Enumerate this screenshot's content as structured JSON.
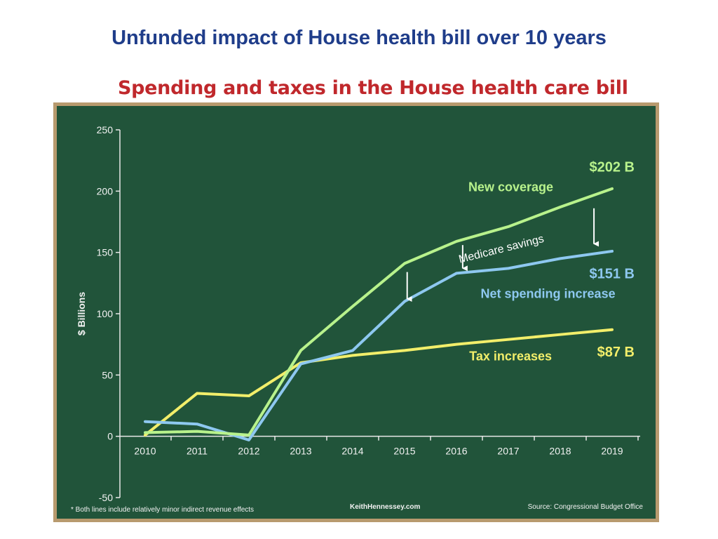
{
  "slide": {
    "title": "Unfunded impact of House health bill over 10 years"
  },
  "chart_data": {
    "type": "line",
    "title": "Spending and taxes in the House health care bill",
    "xlabel": "",
    "ylabel": "$ Billions",
    "ylim": [
      -50,
      250
    ],
    "yticks": [
      -50,
      0,
      50,
      100,
      150,
      200,
      250
    ],
    "x": [
      "2010",
      "2011",
      "2012",
      "2013",
      "2014",
      "2015",
      "2016",
      "2017",
      "2018",
      "2019"
    ],
    "grid": false,
    "series": [
      {
        "name": "New coverage",
        "color": "#b8f28c",
        "values": [
          3,
          4,
          1,
          70,
          106,
          141,
          159,
          171,
          187,
          202
        ],
        "end_label": "$202 B"
      },
      {
        "name": "Net spending increase",
        "color": "#8ec8f0",
        "values": [
          12,
          10,
          -3,
          59,
          70,
          110,
          133,
          137,
          145,
          151
        ],
        "end_label": "$151 B"
      },
      {
        "name": "Tax increases",
        "color": "#f2ee6a",
        "values": [
          1,
          35,
          33,
          60,
          66,
          70,
          75,
          79,
          83,
          87
        ],
        "end_label": "$87 B"
      }
    ],
    "annotations": {
      "medicare_savings": "Medicare savings"
    },
    "footnote": "* Both lines include relatively minor indirect revenue effects",
    "credit": "KeithHennessey.com",
    "source": "Source: Congressional Budget Office"
  }
}
